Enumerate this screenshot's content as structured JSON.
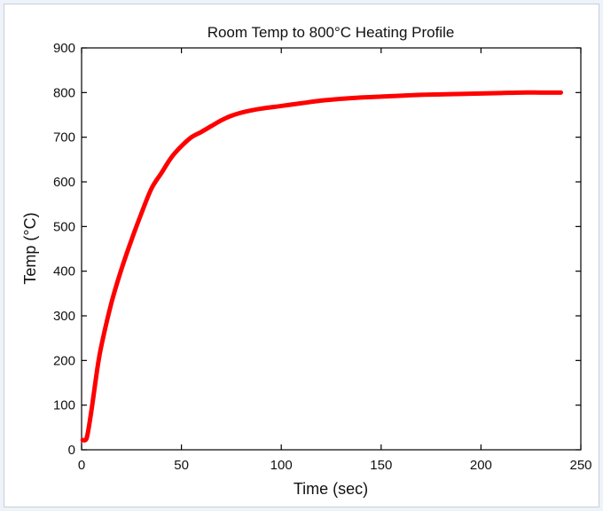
{
  "chart_data": {
    "type": "line",
    "title": "Room Temp to 800°C Heating Profile",
    "xlabel": "Time (sec)",
    "ylabel": "Temp (°C)",
    "xlim": [
      0,
      250
    ],
    "ylim": [
      0,
      900
    ],
    "xticks": [
      "0",
      "50",
      "100",
      "150",
      "200",
      "250"
    ],
    "yticks": [
      "0",
      "100",
      "200",
      "300",
      "400",
      "500",
      "600",
      "700",
      "800",
      "900"
    ],
    "grid": false,
    "legend": "none",
    "colors": {
      "line": "#ff0000",
      "axes": "#000000",
      "background": "#eef2f9"
    },
    "series": [
      {
        "x": [
          0.5,
          2,
          3,
          5,
          8,
          10,
          15,
          20,
          25,
          30,
          35,
          40,
          45,
          50,
          55,
          60,
          65,
          70,
          75,
          80,
          85,
          90,
          100,
          110,
          120,
          130,
          140,
          150,
          160,
          170,
          180,
          190,
          200,
          210,
          220,
          230,
          240
        ],
        "y": [
          22,
          22,
          35,
          90,
          185,
          235,
          330,
          405,
          470,
          530,
          585,
          620,
          655,
          680,
          700,
          712,
          725,
          738,
          748,
          755,
          760,
          764,
          770,
          776,
          782,
          786,
          789,
          791,
          793,
          795,
          796,
          797,
          798,
          799,
          800,
          800,
          800
        ]
      }
    ]
  }
}
